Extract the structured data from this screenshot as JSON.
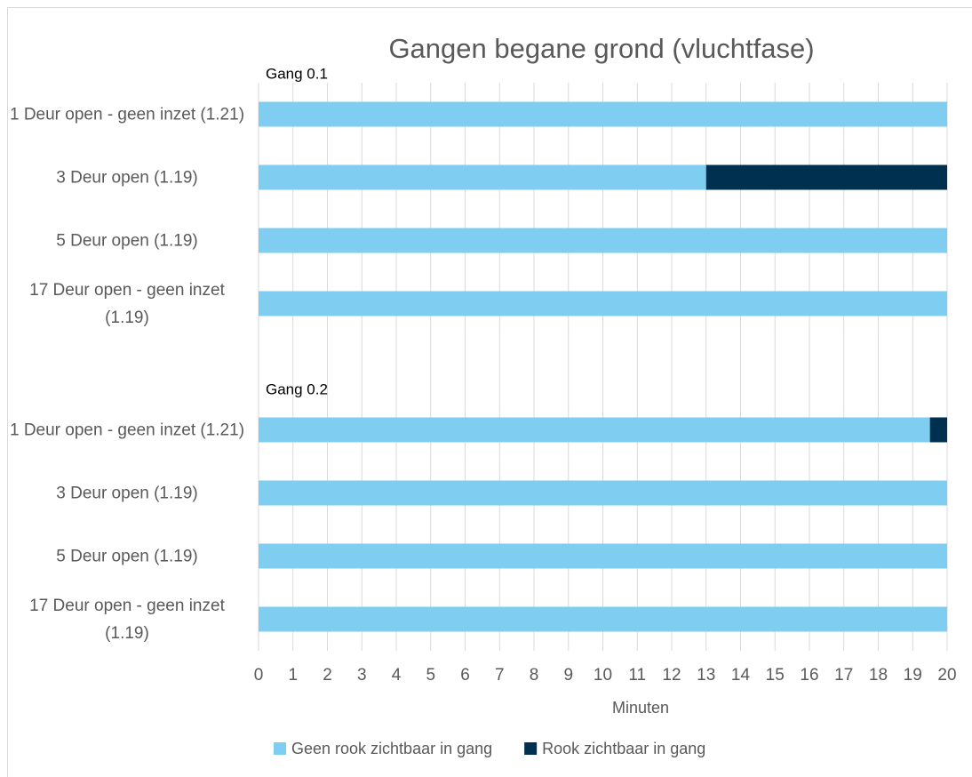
{
  "chart_data": {
    "type": "stacked_barh",
    "title": "Gangen begane grond (vluchtfase)",
    "x_label": "Minuten",
    "annotations": [
      "Gang 0.1",
      "Gang 0.2"
    ],
    "categories": [
      "1 Deur open - geen inzet (1.21)",
      "3 Deur open (1.19)",
      "5 Deur open (1.19)",
      "17 Deur open - geen inzet (1.19)",
      null,
      "1 Deur open - geen inzet (1.21)",
      "3 Deur open (1.19)",
      "5 Deur open (1.19)",
      "17 Deur open - geen inzet (1.19)"
    ],
    "series": [
      {
        "name": "Geen rook zichtbaar in gang",
        "color": "#7fcef2",
        "values": [
          20,
          13,
          20,
          20,
          null,
          19.5,
          20,
          20,
          20
        ]
      },
      {
        "name": "Rook zichtbaar in gang",
        "color": "#00304f",
        "values": [
          0,
          7,
          0,
          0,
          null,
          0.5,
          0,
          0,
          0
        ]
      }
    ],
    "xlim": [
      0,
      20
    ],
    "xticks": [
      0,
      1,
      2,
      3,
      4,
      5,
      6,
      7,
      8,
      9,
      10,
      11,
      12,
      13,
      14,
      15,
      16,
      17,
      18,
      19,
      20
    ],
    "grid": true,
    "legend": "bottom"
  }
}
